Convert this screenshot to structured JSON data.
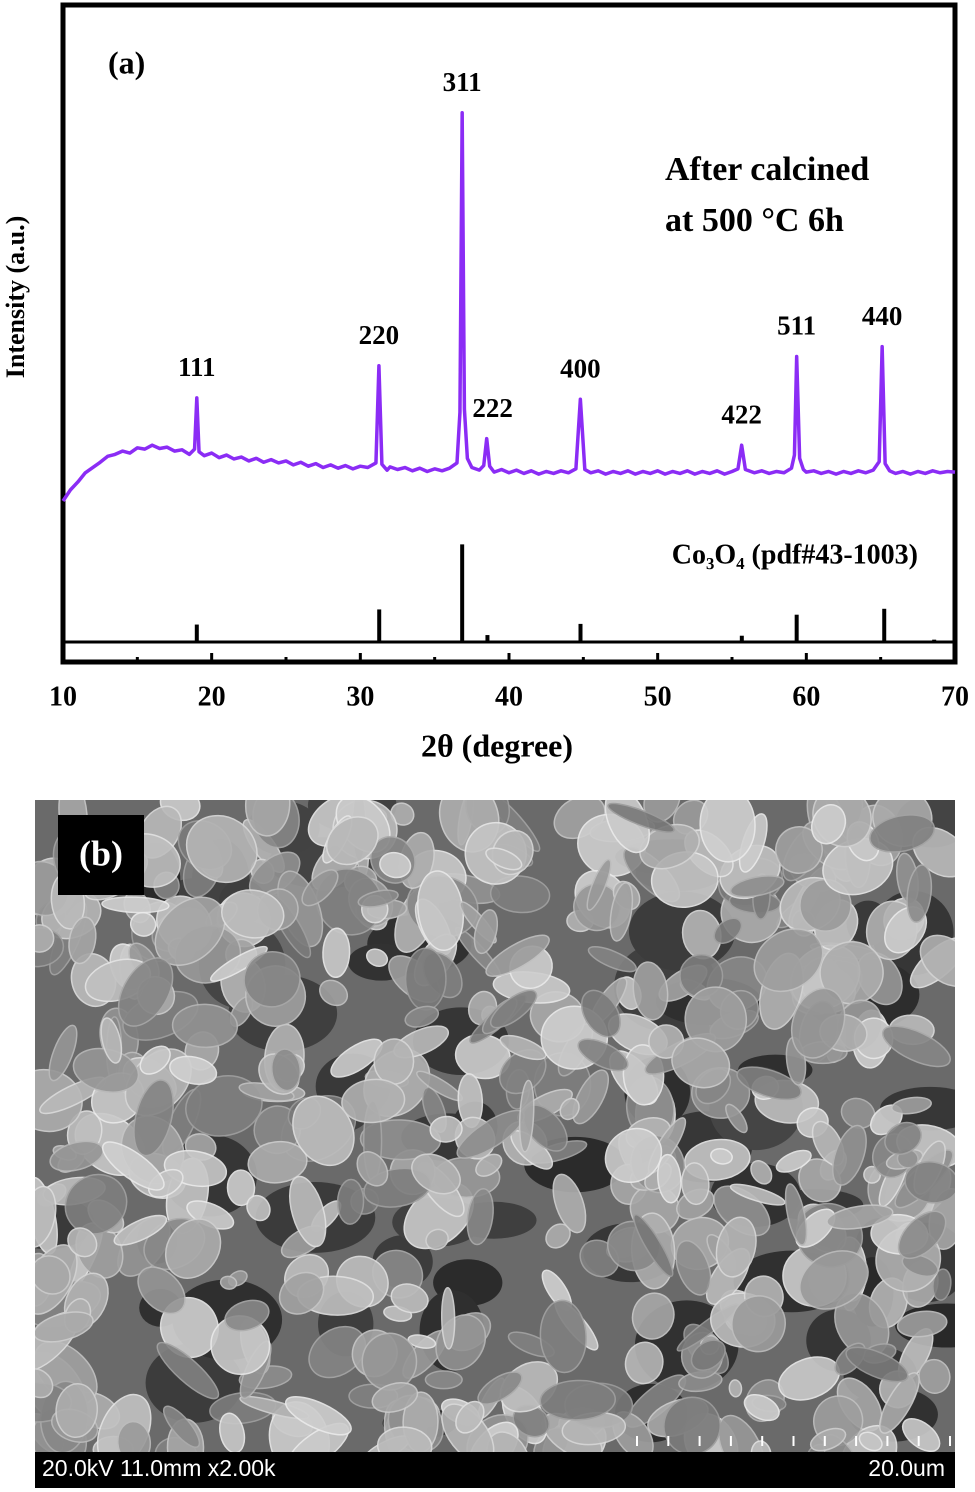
{
  "chart_data": {
    "type": "line",
    "label": "(a)",
    "xlabel": "2θ (degree)",
    "ylabel": "Intensity (a.u.)",
    "xlim": [
      10,
      70
    ],
    "xticks": [
      10,
      20,
      30,
      40,
      50,
      60,
      70
    ],
    "xminorticks": [
      15,
      25,
      35,
      45,
      55,
      65
    ],
    "ylim": [
      0,
      100
    ],
    "annotations": [
      "After calcined",
      "at 500 °C  6h"
    ],
    "series": [
      {
        "color": "#8b2cf5",
        "x": [
          10,
          10.5,
          11,
          11.5,
          12,
          12.5,
          13,
          13.5,
          14,
          14.5,
          15,
          15.5,
          16,
          16.5,
          17,
          17.5,
          18,
          18.5,
          18.85,
          19.0,
          19.15,
          19.5,
          20,
          20.5,
          21,
          21.5,
          22,
          22.5,
          23,
          23.5,
          24,
          24.5,
          25,
          25.5,
          26,
          26.5,
          27,
          27.5,
          28,
          28.5,
          29,
          29.5,
          30,
          30.5,
          31.05,
          31.25,
          31.45,
          31.8,
          32,
          32.5,
          33,
          33.5,
          34,
          34.5,
          35,
          35.5,
          36,
          36.5,
          36.7,
          36.85,
          37.0,
          37.2,
          37.5,
          38,
          38.3,
          38.5,
          38.7,
          39,
          39.5,
          40,
          40.5,
          41,
          41.5,
          42,
          42.5,
          43,
          43.5,
          44,
          44.5,
          44.8,
          45.1,
          45.5,
          46,
          46.5,
          47,
          47.5,
          48,
          48.5,
          49,
          49.5,
          50,
          50.5,
          51,
          51.5,
          52,
          52.5,
          53,
          53.5,
          54,
          54.5,
          55,
          55.4,
          55.65,
          55.9,
          56.5,
          57,
          57.5,
          58,
          58.5,
          59,
          59.2,
          59.35,
          59.55,
          59.8,
          60,
          60.5,
          61,
          61.5,
          62,
          62.5,
          63,
          63.5,
          64,
          64.5,
          64.9,
          65.1,
          65.3,
          65.6,
          66,
          66.5,
          67,
          67.5,
          68,
          68.5,
          69,
          69.5,
          70
        ],
        "values": [
          24.5,
          26.2,
          27.4,
          28.8,
          29.6,
          30.4,
          31.3,
          31.6,
          32.1,
          31.8,
          32.6,
          32.4,
          33.0,
          32.5,
          32.7,
          32.1,
          32.3,
          31.6,
          32.4,
          40.2,
          32.0,
          31.4,
          31.8,
          31.1,
          31.5,
          30.9,
          31.2,
          30.6,
          31.0,
          30.4,
          30.8,
          30.3,
          30.6,
          30.0,
          30.4,
          29.8,
          30.2,
          29.6,
          30.0,
          29.5,
          29.9,
          29.4,
          29.8,
          29.6,
          30.3,
          45.1,
          30.1,
          29.2,
          29.7,
          29.3,
          29.6,
          29.1,
          29.5,
          29.0,
          29.4,
          29.1,
          29.5,
          30.3,
          38.0,
          83.6,
          38.5,
          31.0,
          29.6,
          29.2,
          29.9,
          34.0,
          29.8,
          28.9,
          29.3,
          28.8,
          29.2,
          28.7,
          29.1,
          28.6,
          29.0,
          28.7,
          29.1,
          28.8,
          29.4,
          40.0,
          29.3,
          28.8,
          29.1,
          28.6,
          29.0,
          28.7,
          29.1,
          28.6,
          29.0,
          28.7,
          29.1,
          28.6,
          29.0,
          28.7,
          29.1,
          28.6,
          29.0,
          28.7,
          29.1,
          28.6,
          29.0,
          29.4,
          33.0,
          29.3,
          28.8,
          29.1,
          28.7,
          29.0,
          28.8,
          29.5,
          31.5,
          46.5,
          31.0,
          29.3,
          28.9,
          29.1,
          28.7,
          29.0,
          28.6,
          29.0,
          28.7,
          29.1,
          28.8,
          29.2,
          30.5,
          48.0,
          30.2,
          29.1,
          28.7,
          29.0,
          28.6,
          29.0,
          28.7,
          29.1,
          28.8,
          29.0,
          28.9
        ]
      },
      {
        "type": "stick",
        "name": "Co₃O₄ (pdf#43-1003)",
        "color": "#000000",
        "x": [
          19.0,
          31.27,
          36.85,
          38.55,
          44.81,
          55.66,
          59.35,
          65.24,
          68.6
        ],
        "values": [
          5.7,
          8.0,
          17.9,
          4.1,
          5.8,
          4.0,
          7.2,
          8.1,
          3.4
        ]
      }
    ],
    "peak_labels": [
      {
        "text": "111",
        "x": 19.0,
        "y": 40.2
      },
      {
        "text": "220",
        "x": 31.25,
        "y": 45.1
      },
      {
        "text": "311",
        "x": 36.85,
        "y": 83.6
      },
      {
        "text": "222",
        "x": 38.9,
        "y": 34.0
      },
      {
        "text": "400",
        "x": 44.8,
        "y": 40.0
      },
      {
        "text": "422",
        "x": 55.65,
        "y": 33.0
      },
      {
        "text": "511",
        "x": 59.35,
        "y": 46.5
      },
      {
        "text": "440",
        "x": 65.1,
        "y": 48.0
      }
    ]
  },
  "sem_image": {
    "label": "(b)",
    "info": "20.0kV 11.0mm x2.00k",
    "scale": "20.0um"
  }
}
